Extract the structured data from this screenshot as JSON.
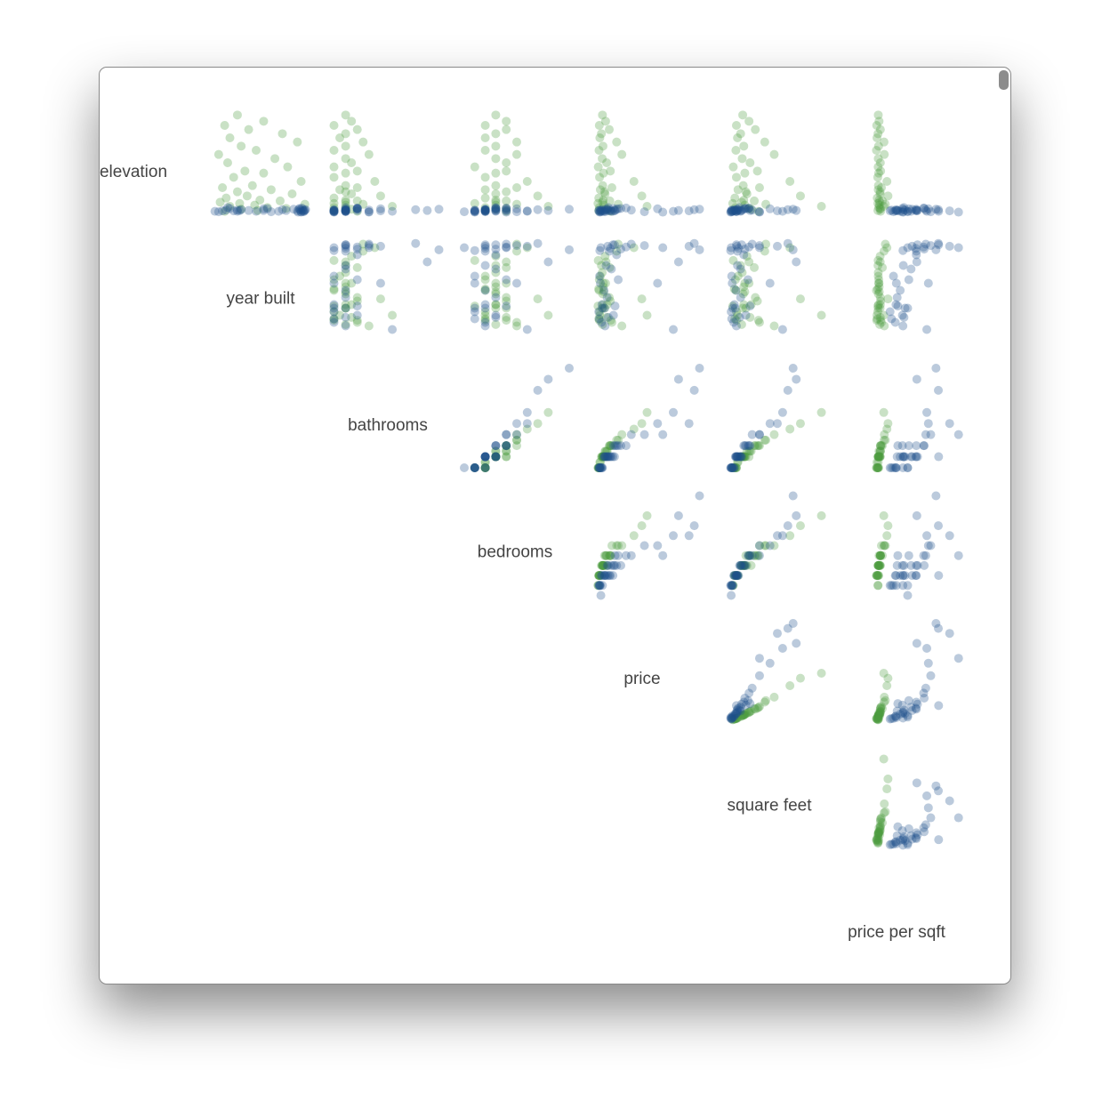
{
  "chart_data": {
    "type": "splom",
    "dimensions": [
      {
        "label": "elevation",
        "lim": [
          0,
          240
        ]
      },
      {
        "label": "year built",
        "lim": [
          1880,
          2020
        ]
      },
      {
        "label": "bathrooms",
        "lim": [
          1,
          10
        ]
      },
      {
        "label": "bedrooms",
        "lim": [
          0,
          10
        ]
      },
      {
        "label": "price",
        "lim": [
          0,
          20000000
        ]
      },
      {
        "label": "square feet",
        "lim": [
          0,
          10000
        ]
      },
      {
        "label": "price per sqft",
        "lim": [
          0,
          4000
        ]
      }
    ],
    "series": [
      {
        "color": "#4c9a3f",
        "rows": [
          [
            235,
            1925,
            2,
            3,
            1500000,
            1700,
            880
          ],
          [
            220,
            1960,
            2.5,
            4,
            2100000,
            2300,
            910
          ],
          [
            210,
            1908,
            1,
            2,
            900000,
            1100,
            820
          ],
          [
            200,
            1940,
            3,
            4,
            2800000,
            2900,
            960
          ],
          [
            190,
            1985,
            2,
            3,
            1300000,
            1500,
            870
          ],
          [
            180,
            1915,
            1.5,
            2,
            1000000,
            1200,
            830
          ],
          [
            170,
            2005,
            3.5,
            5,
            4200000,
            3800,
            1100
          ],
          [
            160,
            1930,
            2,
            3,
            1600000,
            1800,
            890
          ],
          [
            150,
            1950,
            1,
            2,
            850000,
            1050,
            810
          ],
          [
            140,
            1900,
            4,
            5,
            5200000,
            4700,
            1110
          ],
          [
            130,
            1975,
            2,
            3,
            1450000,
            1650,
            880
          ],
          [
            120,
            1912,
            2.5,
            4,
            2300000,
            2400,
            960
          ],
          [
            110,
            1992,
            1,
            1,
            700000,
            800,
            875
          ],
          [
            100,
            1935,
            3,
            4,
            3000000,
            3100,
            970
          ],
          [
            95,
            1960,
            2,
            3,
            1700000,
            1900,
            895
          ],
          [
            85,
            1920,
            1,
            2,
            950000,
            1100,
            860
          ],
          [
            75,
            2010,
            4.5,
            6,
            7500000,
            6200,
            1210
          ],
          [
            65,
            1945,
            2,
            3,
            1550000,
            1750,
            885
          ],
          [
            60,
            1905,
            3,
            5,
            3300000,
            3300,
            1000
          ],
          [
            55,
            1970,
            1.5,
            2,
            1100000,
            1250,
            880
          ],
          [
            50,
            1925,
            2,
            4,
            1900000,
            2000,
            950
          ],
          [
            45,
            1998,
            2.5,
            3,
            2000000,
            2100,
            950
          ],
          [
            40,
            1938,
            5,
            7,
            9000000,
            7200,
            1250
          ],
          [
            35,
            1910,
            1,
            2,
            800000,
            950,
            840
          ],
          [
            30,
            1955,
            2,
            3,
            1650000,
            1800,
            915
          ],
          [
            28,
            1982,
            3,
            4,
            2900000,
            2800,
            1035
          ],
          [
            25,
            1902,
            2,
            3,
            1500000,
            1600,
            935
          ],
          [
            22,
            1928,
            1,
            1,
            650000,
            750,
            865
          ],
          [
            20,
            2015,
            3.5,
            5,
            4500000,
            3900,
            1150
          ],
          [
            18,
            1948,
            2,
            3,
            1750000,
            1900,
            920
          ],
          [
            15,
            1915,
            6,
            8,
            10000000,
            9200,
            1090
          ],
          [
            12,
            1965,
            1,
            2,
            900000,
            1000,
            900
          ],
          [
            10,
            1990,
            2,
            4,
            2200000,
            2300,
            955
          ],
          [
            8,
            1930,
            2.5,
            3,
            2400000,
            2500,
            960
          ],
          [
            5,
            1952,
            1,
            2,
            780000,
            900,
            865
          ],
          [
            3,
            1908,
            3,
            4,
            3100000,
            3200,
            970
          ]
        ]
      },
      {
        "color": "#1d4f8a",
        "rows": [
          [
            2,
            2010,
            1,
            0,
            1200000,
            600,
            2000
          ],
          [
            3,
            1925,
            1,
            1,
            1500000,
            750,
            2000
          ],
          [
            5,
            1960,
            1,
            1,
            1100000,
            700,
            1570
          ],
          [
            4,
            2005,
            2,
            2,
            2800000,
            1200,
            2330
          ],
          [
            6,
            1910,
            1,
            1,
            900000,
            650,
            1385
          ],
          [
            8,
            2012,
            2,
            2,
            2500000,
            1150,
            2170
          ],
          [
            3,
            1980,
            2,
            3,
            3200000,
            1500,
            2130
          ],
          [
            7,
            1930,
            1,
            2,
            1400000,
            900,
            1555
          ],
          [
            10,
            2008,
            3,
            3,
            5000000,
            1900,
            2630
          ],
          [
            2,
            1900,
            2,
            2,
            2000000,
            1100,
            1820
          ],
          [
            5,
            2014,
            2,
            3,
            3800000,
            1600,
            2375
          ],
          [
            9,
            1965,
            3,
            4,
            4500000,
            2200,
            2045
          ],
          [
            4,
            1920,
            1,
            1,
            800000,
            600,
            1330
          ],
          [
            6,
            2015,
            4,
            4,
            7000000,
            2600,
            2690
          ],
          [
            3,
            1950,
            2,
            2,
            1800000,
            1050,
            1715
          ],
          [
            8,
            2000,
            3,
            3,
            4200000,
            1800,
            2330
          ],
          [
            12,
            1912,
            2,
            3,
            2600000,
            1400,
            1860
          ],
          [
            1,
            2006,
            1,
            1,
            1000000,
            550,
            1820
          ],
          [
            5,
            1928,
            3,
            4,
            3900000,
            2400,
            1625
          ],
          [
            7,
            1985,
            2,
            2,
            2200000,
            1200,
            1835
          ],
          [
            2,
            2013,
            4,
            5,
            9500000,
            3300,
            2880
          ],
          [
            4,
            1905,
            1,
            2,
            1300000,
            850,
            1530
          ],
          [
            9,
            1960,
            5,
            5,
            12000000,
            4300,
            2790
          ],
          [
            6,
            2009,
            2,
            2,
            3000000,
            1300,
            2310
          ],
          [
            3,
            1895,
            6,
            6,
            15000000,
            5500,
            2730
          ],
          [
            11,
            2011,
            3,
            4,
            6000000,
            2300,
            2610
          ],
          [
            5,
            1940,
            2,
            3,
            2400000,
            1500,
            1600
          ],
          [
            7,
            2016,
            8,
            7,
            19000000,
            6000,
            3170
          ],
          [
            2,
            1970,
            1,
            1,
            950000,
            650,
            1460
          ],
          [
            4,
            2012,
            5,
            6,
            18000000,
            5000,
            3600
          ],
          [
            6,
            1925,
            2,
            2,
            1900000,
            1000,
            1900
          ],
          [
            8,
            2007,
            10,
            10,
            20000000,
            6500,
            3080
          ],
          [
            3,
            2014,
            2,
            2,
            3500000,
            1100,
            3180
          ],
          [
            5,
            1990,
            9,
            8,
            16000000,
            6800,
            2350
          ],
          [
            10,
            1915,
            3,
            3,
            3600000,
            2000,
            1800
          ],
          [
            1,
            2010,
            4,
            4,
            13000000,
            3300,
            3940
          ]
        ]
      }
    ]
  }
}
